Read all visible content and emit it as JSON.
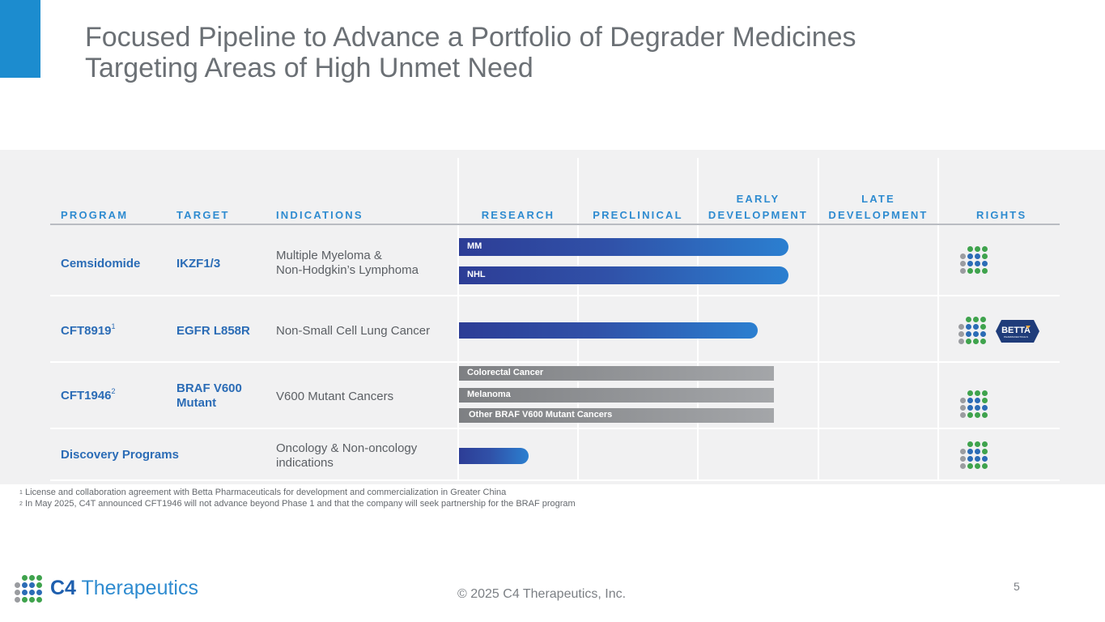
{
  "title": {
    "line1": "Focused Pipeline to Advance a Portfolio of Degrader Medicines",
    "line2": "Targeting Areas of High Unmet Need"
  },
  "headers": {
    "program": "PROGRAM",
    "target": "TARGET",
    "indications": "INDICATIONS",
    "research": "RESEARCH",
    "preclinical": "PRECLINICAL",
    "early_line1": "EARLY",
    "early_line2": "DEVELOPMENT",
    "late_line1": "LATE",
    "late_line2": "DEVELOPMENT",
    "rights": "RIGHTS"
  },
  "rows": [
    {
      "program": "Cemsidomide",
      "target": "IKZF1/3",
      "indication_line1": "Multiple Myeloma &",
      "indication_line2": "Non-Hodgkin’s Lymphoma",
      "bars": [
        {
          "label": "MM",
          "stage_progress": 0.69
        },
        {
          "label": "NHL",
          "stage_progress": 0.69
        }
      ]
    },
    {
      "program": "CFT8919",
      "footnote_marker": "1",
      "target": "EGFR L858R",
      "indication_line1": "Non-Small Cell Lung Cancer",
      "bars": [
        {
          "label": "",
          "stage_progress": 0.63
        }
      ],
      "partner_logo_text": "BETTA",
      "partner_logo_subtext": "PHARMACEUTICALS"
    },
    {
      "program": "CFT1946",
      "footnote_marker": "2",
      "target_line1": "BRAF V600",
      "target_line2": "Mutant",
      "indication_line1": "V600 Mutant Cancers",
      "bars": [
        {
          "label": "Colorectal Cancer",
          "stage_progress": 0.66
        },
        {
          "label": "Melanoma",
          "stage_progress": 0.66
        },
        {
          "label": "Other  BRAF V600 Mutant Cancers",
          "stage_progress": 0.66
        }
      ]
    },
    {
      "program": "Discovery Programs",
      "indication_line1": "Oncology & Non-oncology",
      "indication_line2": "indications",
      "bars": [
        {
          "label": "",
          "stage_progress": 0.14
        }
      ]
    }
  ],
  "footnotes": {
    "f1_marker": "1",
    "f1_text": " License and collaboration agreement with Betta Pharmaceuticals for development and commercialization in Greater China",
    "f2_marker": "2",
    "f2_text": " In May 2025, C4T announced CFT1946 will not advance beyond Phase 1 and that the company will seek partnership for the BRAF program"
  },
  "footer": {
    "logo_bold": "C4",
    "logo_light": " Therapeutics",
    "copyright": "© 2025 C4 Therapeutics, Inc.",
    "page_number": "5"
  },
  "colors": {
    "accent": "#1c8ccf",
    "program_text": "#2b6cb6",
    "header_text": "#2e8bd0",
    "dot_green": "#3fa34d",
    "dot_blue": "#2b6cb6",
    "dot_gray": "#9a9ca0",
    "betta_navy": "#1f3c7a"
  }
}
